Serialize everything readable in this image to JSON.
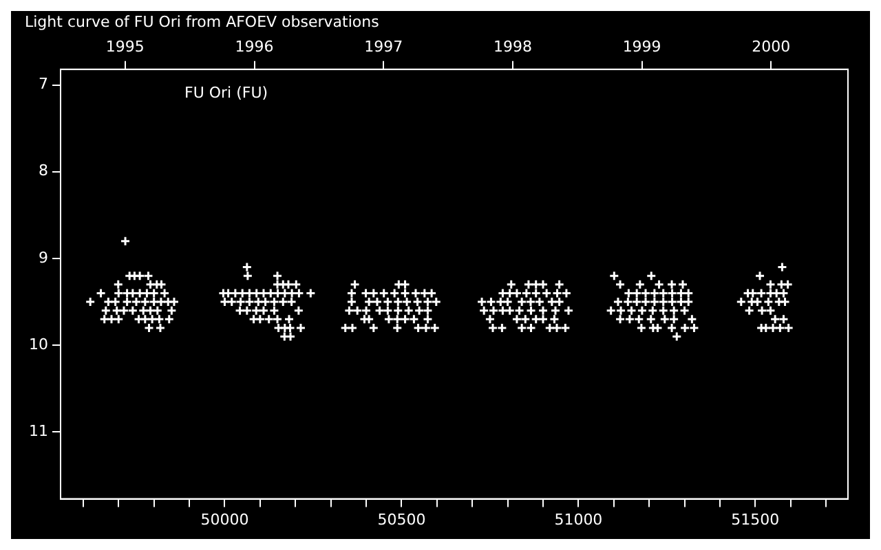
{
  "chart_data": {
    "type": "scatter",
    "title": "Light curve of FU Ori from AFOEV observations",
    "annotations": [
      "FU Ori (FU)"
    ],
    "xlim": [
      49536,
      51762
    ],
    "ylim": [
      11.77,
      6.82
    ],
    "xticks": [
      {
        "value": 49600,
        "label": null
      },
      {
        "value": 49700,
        "label": null
      },
      {
        "value": 49800,
        "label": null
      },
      {
        "value": 49900,
        "label": null
      },
      50000,
      {
        "value": 50100,
        "label": null
      },
      {
        "value": 50200,
        "label": null
      },
      {
        "value": 50300,
        "label": null
      },
      {
        "value": 50400,
        "label": null
      },
      50500,
      {
        "value": 50600,
        "label": null
      },
      {
        "value": 50700,
        "label": null
      },
      {
        "value": 50800,
        "label": null
      },
      {
        "value": 50900,
        "label": null
      },
      51000,
      {
        "value": 51100,
        "label": null
      },
      {
        "value": 51200,
        "label": null
      },
      {
        "value": 51300,
        "label": null
      },
      {
        "value": 51400,
        "label": null
      },
      51500,
      {
        "value": 51600,
        "label": null
      },
      {
        "value": 51700,
        "label": null
      }
    ],
    "x2lim": [
      1994.5,
      2000.595
    ],
    "x2ticks": [
      1995,
      1996,
      1997,
      1998,
      1999,
      2000
    ],
    "yticks": [
      7,
      8,
      9,
      10,
      11
    ],
    "grid": false,
    "legend": false,
    "marker": "cross",
    "series": [
      {
        "color": "#ffffff",
        "x": [
          49719,
          49731,
          49745,
          49760,
          49784,
          49699,
          49790,
          49808,
          49821,
          49650,
          49700,
          49724,
          49740,
          49760,
          49780,
          49800,
          49830,
          49620,
          49671,
          49691,
          49724,
          49750,
          49775,
          49800,
          49820,
          49840,
          49857,
          49664,
          49695,
          49715,
          49740,
          49770,
          49790,
          49810,
          49850,
          49660,
          49680,
          49700,
          49757,
          49775,
          49795,
          49815,
          49843,
          49786,
          49818,
          50063,
          50065,
          50149,
          50149,
          50165,
          50180,
          50202,
          49996,
          50010,
          50030,
          50050,
          50070,
          50090,
          50110,
          50130,
          50150,
          50170,
          50190,
          50210,
          50243,
          50000,
          50020,
          50045,
          50070,
          50095,
          50115,
          50140,
          50165,
          50189,
          50043,
          50063,
          50089,
          50110,
          50140,
          50209,
          50082,
          50100,
          50125,
          50149,
          50182,
          50152,
          50170,
          50185,
          50215,
          50169,
          50186,
          50368,
          50492,
          50510,
          50359,
          50399,
          50421,
          50450,
          50480,
          50510,
          50540,
          50565,
          50585,
          50359,
          50408,
          50431,
          50461,
          50490,
          50515,
          50545,
          50574,
          50598,
          50352,
          50375,
          50400,
          50438,
          50461,
          50490,
          50520,
          50550,
          50574,
          50395,
          50408,
          50464,
          50488,
          50510,
          50535,
          50574,
          50341,
          50361,
          50421,
          50488,
          50547,
          50569,
          50594,
          50810,
          50859,
          50880,
          50900,
          50946,
          50786,
          50806,
          50826,
          50853,
          50880,
          50910,
          50940,
          50966,
          50727,
          50753,
          50780,
          50800,
          50840,
          50865,
          50890,
          50925,
          50946,
          50733,
          50760,
          50786,
          50806,
          50833,
          50866,
          50900,
          50935,
          50972,
          50750,
          50826,
          50850,
          50880,
          50900,
          50932,
          50758,
          50784,
          50840,
          50866,
          50919,
          50939,
          50963,
          51101,
          51206,
          51118,
          51174,
          51228,
          51264,
          51295,
          51142,
          51165,
          51190,
          51215,
          51240,
          51265,
          51290,
          51311,
          51112,
          51140,
          51165,
          51190,
          51215,
          51240,
          51265,
          51290,
          51311,
          51092,
          51120,
          51150,
          51180,
          51210,
          51240,
          51270,
          51300,
          51118,
          51145,
          51171,
          51205,
          51244,
          51270,
          51321,
          51178,
          51211,
          51224,
          51264,
          51301,
          51327,
          51278,
          51576,
          51513,
          51543,
          51574,
          51592,
          51479,
          51493,
          51517,
          51543,
          51560,
          51580,
          51460,
          51490,
          51506,
          51537,
          51567,
          51584,
          51483,
          51519,
          51543,
          51556,
          51580,
          51517,
          51530,
          51550,
          51570,
          51594
        ],
        "values": [
          8.8,
          9.2,
          9.2,
          9.2,
          9.2,
          9.3,
          9.3,
          9.3,
          9.3,
          9.4,
          9.4,
          9.4,
          9.4,
          9.4,
          9.4,
          9.4,
          9.4,
          9.5,
          9.5,
          9.5,
          9.5,
          9.5,
          9.5,
          9.5,
          9.5,
          9.5,
          9.5,
          9.6,
          9.6,
          9.6,
          9.6,
          9.6,
          9.6,
          9.6,
          9.6,
          9.7,
          9.7,
          9.7,
          9.7,
          9.7,
          9.7,
          9.7,
          9.7,
          9.8,
          9.8,
          9.1,
          9.2,
          9.2,
          9.3,
          9.3,
          9.3,
          9.3,
          9.4,
          9.4,
          9.4,
          9.4,
          9.4,
          9.4,
          9.4,
          9.4,
          9.4,
          9.4,
          9.4,
          9.4,
          9.4,
          9.5,
          9.5,
          9.5,
          9.5,
          9.5,
          9.5,
          9.5,
          9.5,
          9.5,
          9.6,
          9.6,
          9.6,
          9.6,
          9.6,
          9.6,
          9.7,
          9.7,
          9.7,
          9.7,
          9.7,
          9.8,
          9.8,
          9.8,
          9.8,
          9.9,
          9.9,
          9.3,
          9.3,
          9.3,
          9.4,
          9.4,
          9.4,
          9.4,
          9.4,
          9.4,
          9.4,
          9.4,
          9.4,
          9.5,
          9.5,
          9.5,
          9.5,
          9.5,
          9.5,
          9.5,
          9.5,
          9.5,
          9.6,
          9.6,
          9.6,
          9.6,
          9.6,
          9.6,
          9.6,
          9.6,
          9.6,
          9.7,
          9.7,
          9.7,
          9.7,
          9.7,
          9.7,
          9.7,
          9.8,
          9.8,
          9.8,
          9.8,
          9.8,
          9.8,
          9.8,
          9.3,
          9.3,
          9.3,
          9.3,
          9.3,
          9.4,
          9.4,
          9.4,
          9.4,
          9.4,
          9.4,
          9.4,
          9.4,
          9.5,
          9.5,
          9.5,
          9.5,
          9.5,
          9.5,
          9.5,
          9.5,
          9.5,
          9.6,
          9.6,
          9.6,
          9.6,
          9.6,
          9.6,
          9.6,
          9.6,
          9.6,
          9.7,
          9.7,
          9.7,
          9.7,
          9.7,
          9.7,
          9.8,
          9.8,
          9.8,
          9.8,
          9.8,
          9.8,
          9.8,
          9.2,
          9.2,
          9.3,
          9.3,
          9.3,
          9.3,
          9.3,
          9.4,
          9.4,
          9.4,
          9.4,
          9.4,
          9.4,
          9.4,
          9.4,
          9.5,
          9.5,
          9.5,
          9.5,
          9.5,
          9.5,
          9.5,
          9.5,
          9.5,
          9.6,
          9.6,
          9.6,
          9.6,
          9.6,
          9.6,
          9.6,
          9.6,
          9.7,
          9.7,
          9.7,
          9.7,
          9.7,
          9.7,
          9.7,
          9.8,
          9.8,
          9.8,
          9.8,
          9.8,
          9.8,
          9.9,
          9.1,
          9.2,
          9.3,
          9.3,
          9.3,
          9.4,
          9.4,
          9.4,
          9.4,
          9.4,
          9.4,
          9.5,
          9.5,
          9.5,
          9.5,
          9.5,
          9.5,
          9.6,
          9.6,
          9.6,
          9.7,
          9.7,
          9.8,
          9.8,
          9.8,
          9.8,
          9.8
        ]
      }
    ]
  }
}
